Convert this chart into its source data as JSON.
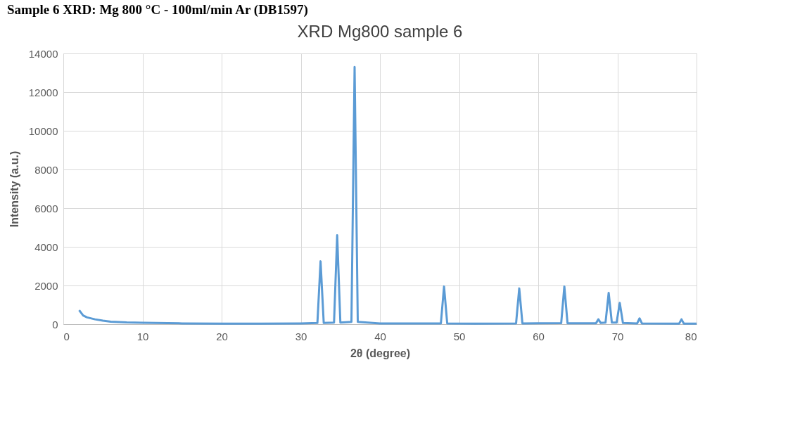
{
  "chart_data": {
    "type": "line",
    "title": "XRD Mg800 sample 6",
    "xlabel": "2θ (degree)",
    "ylabel": "Intensity (a.u.)",
    "annotations": [
      "Sample 6 XRD: Mg 800 °C - 100ml/min Ar (DB1597)"
    ],
    "xlim": [
      0,
      80
    ],
    "xticks": [
      0,
      10,
      20,
      30,
      40,
      50,
      60,
      70,
      80
    ],
    "ylim": [
      0,
      14000
    ],
    "yticks": [
      0,
      2000,
      4000,
      6000,
      8000,
      10000,
      12000,
      14000
    ],
    "grid": true,
    "legend": false,
    "marker": "none",
    "line_style": "solid",
    "series": [
      {
        "color": "#5b9bd5",
        "x": [
          2,
          2.5,
          3,
          4,
          5,
          6,
          8,
          10,
          15,
          20,
          25,
          30,
          32.1,
          32.5,
          32.9,
          34.2,
          34.6,
          35,
          36.4,
          36.8,
          37.2,
          40,
          45,
          47.7,
          48.1,
          48.5,
          52,
          57.2,
          57.6,
          58,
          62.9,
          63.3,
          63.7,
          67.3,
          67.6,
          67.9,
          68.5,
          68.9,
          69.3,
          69.9,
          70.3,
          70.7,
          72.5,
          72.8,
          73.1,
          77.8,
          78.1,
          78.4,
          80
        ],
        "values": [
          720,
          450,
          350,
          250,
          180,
          130,
          90,
          70,
          40,
          30,
          30,
          40,
          60,
          3250,
          60,
          80,
          4600,
          80,
          120,
          13300,
          120,
          40,
          40,
          40,
          1950,
          40,
          30,
          40,
          1850,
          40,
          50,
          1950,
          50,
          50,
          250,
          60,
          80,
          1620,
          80,
          80,
          1100,
          60,
          40,
          300,
          40,
          30,
          250,
          30,
          30
        ]
      }
    ]
  }
}
